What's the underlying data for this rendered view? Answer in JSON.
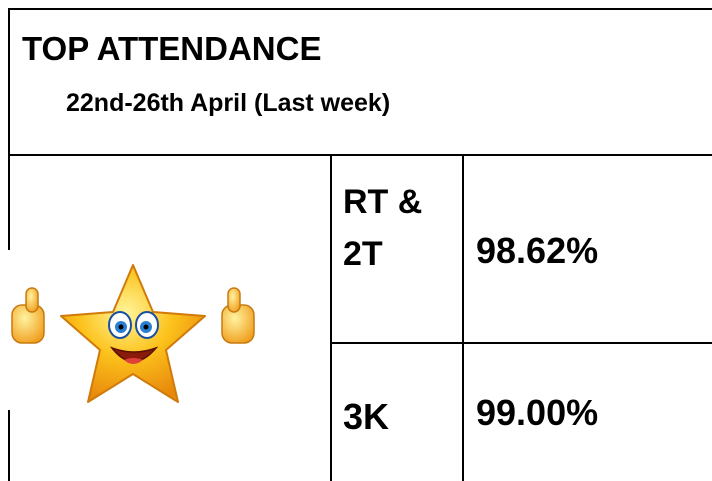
{
  "header": {
    "title": "TOP ATTENDANCE",
    "subtitle": "22nd-26th April (Last week)"
  },
  "table": {
    "rows": [
      [
        "RT & 2T",
        "98.62%"
      ],
      [
        "3K",
        "99.00%"
      ]
    ]
  }
}
